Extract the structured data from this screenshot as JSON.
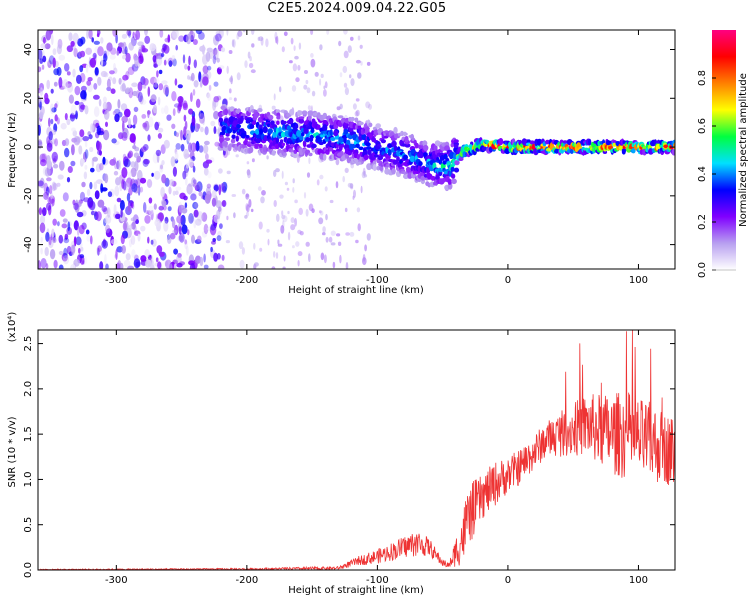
{
  "title": "C2E5.2024.009.04.22.G05",
  "chart_data": [
    {
      "type": "heatmap",
      "xlabel": "Height of straight line (km)",
      "ylabel": "Frequency (Hz)",
      "xlim": [
        -360,
        128
      ],
      "ylim": [
        -50,
        48
      ],
      "xticks": [
        -300,
        -200,
        -100,
        0,
        100
      ],
      "yticks": [
        -40,
        -20,
        0,
        20,
        40
      ],
      "colorbar": {
        "label": "Normalized spectral amplitude",
        "range": [
          0.0,
          1.0
        ],
        "ticks": [
          "0.0",
          "0.2",
          "0.4",
          "0.6",
          "0.8"
        ],
        "colors": [
          "#ffffff",
          "#b8a0f0",
          "#8000ff",
          "#0000ff",
          "#00e0ff",
          "#00ff40",
          "#ffff00",
          "#ff8000",
          "#ff0000",
          "#ff0080"
        ]
      },
      "ridge": {
        "x": [
          -215,
          -180,
          -150,
          -120,
          -100,
          -80,
          -60,
          -45,
          -35,
          -20,
          0,
          50,
          100,
          128
        ],
        "freq": [
          8,
          6,
          5,
          3,
          0,
          -3,
          -7,
          -8,
          -2,
          1,
          0,
          0,
          0,
          0
        ],
        "peak_amplitude": [
          0.4,
          0.45,
          0.45,
          0.45,
          0.4,
          0.4,
          0.45,
          0.5,
          0.8,
          0.9,
          0.95,
          0.95,
          0.9,
          0.9
        ]
      },
      "noise_region": {
        "x_range": [
          -360,
          -215
        ],
        "freq_range": [
          -50,
          48
        ],
        "amplitude": 0.2
      }
    },
    {
      "type": "line",
      "xlabel": "Height of straight line (km)",
      "ylabel": "SNR (10 * v/v)",
      "multiplier": "(x10⁴)",
      "xlim": [
        -360,
        128
      ],
      "ylim": [
        0,
        2.65
      ],
      "xticks": [
        -300,
        -200,
        -100,
        0,
        100
      ],
      "yticks": [
        "0.0",
        "0.5",
        "1.0",
        "1.5",
        "2.0",
        "2.5"
      ],
      "color": "#ee3333",
      "envelope": {
        "x": [
          -360,
          -200,
          -130,
          -115,
          -100,
          -90,
          -80,
          -70,
          -60,
          -50,
          -45,
          -35,
          -30,
          -20,
          -10,
          0,
          10,
          20,
          30,
          40,
          50,
          60,
          70,
          80,
          90,
          100,
          110,
          120,
          128
        ],
        "mean": [
          0.005,
          0.01,
          0.02,
          0.1,
          0.15,
          0.2,
          0.25,
          0.3,
          0.25,
          0.08,
          0.05,
          0.35,
          0.6,
          0.8,
          0.95,
          1.05,
          1.15,
          1.3,
          1.45,
          1.5,
          1.55,
          1.6,
          1.55,
          1.5,
          1.5,
          1.45,
          1.4,
          1.35,
          1.3
        ],
        "spread": [
          0.005,
          0.01,
          0.02,
          0.05,
          0.08,
          0.1,
          0.12,
          0.15,
          0.1,
          0.04,
          0.03,
          0.3,
          0.35,
          0.25,
          0.25,
          0.2,
          0.2,
          0.2,
          0.2,
          0.25,
          0.3,
          0.35,
          0.4,
          0.45,
          0.5,
          0.45,
          0.45,
          0.4,
          0.4
        ]
      },
      "max_value": 2.65
    }
  ]
}
